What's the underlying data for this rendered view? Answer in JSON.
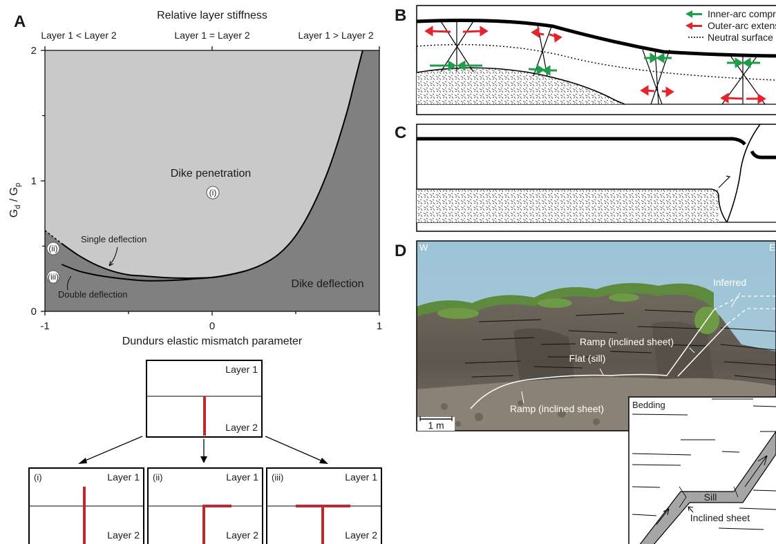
{
  "panels": {
    "a": "A",
    "b": "B",
    "c": "C",
    "d": "D"
  },
  "panel_a": {
    "top_title": "Relative layer stiffness",
    "top_ticks": [
      "Layer 1 < Layer 2",
      "Layer 1 = Layer 2",
      "Layer 1 > Layer 2"
    ],
    "ylabel_main": "G",
    "ylabel_d": "d",
    "ylabel_sep": " / G",
    "ylabel_p": "p",
    "xlabel": "Dundurs elastic mismatch parameter",
    "y_ticks": [
      "0",
      "1",
      "2"
    ],
    "x_ticks": [
      "-1",
      "0",
      "1"
    ],
    "region_penetration": "Dike penetration",
    "region_deflection": "Dike deflection",
    "label_single": "Single deflection",
    "label_double": "Double deflection",
    "markers": [
      "(i)",
      "(ii)",
      "(iii)"
    ],
    "colors": {
      "penetration": "#c9c9c9",
      "deflection": "#808080",
      "dike": "#c0282d"
    }
  },
  "chart_data": {
    "type": "area",
    "xlabel": "Dundurs elastic mismatch parameter",
    "ylabel": "Gd / Gp",
    "top_axis_label": "Relative layer stiffness",
    "top_axis_ticks": [
      "Layer 1 < Layer 2",
      "Layer 1 = Layer 2",
      "Layer 1 > Layer 2"
    ],
    "xlim": [
      -1,
      1
    ],
    "ylim": [
      0,
      2
    ],
    "x_ticks": [
      -1,
      0,
      1
    ],
    "y_ticks": [
      0,
      1,
      2
    ],
    "regions": [
      "Dike penetration",
      "Dike deflection"
    ],
    "series": [
      {
        "name": "Single deflection",
        "x": [
          -1.0,
          -0.9,
          -0.8,
          -0.7,
          -0.6,
          -0.5,
          -0.4,
          -0.3,
          -0.2,
          -0.1,
          0.0,
          0.1,
          0.2,
          0.3,
          0.4,
          0.5,
          0.6,
          0.7,
          0.8,
          0.85,
          0.9
        ],
        "y": [
          0.62,
          0.52,
          0.43,
          0.36,
          0.31,
          0.28,
          0.27,
          0.26,
          0.255,
          0.255,
          0.26,
          0.28,
          0.31,
          0.36,
          0.44,
          0.58,
          0.8,
          1.1,
          1.5,
          1.75,
          2.0
        ]
      },
      {
        "name": "Double deflection",
        "x": [
          -0.9,
          -0.8,
          -0.7,
          -0.6,
          -0.5,
          -0.4,
          -0.3,
          -0.2,
          -0.1,
          0.0,
          0.1,
          0.2
        ],
        "y": [
          0.36,
          0.31,
          0.28,
          0.26,
          0.245,
          0.235,
          0.235,
          0.24,
          0.25,
          0.26,
          0.28,
          0.31
        ]
      }
    ]
  },
  "schematics": {
    "layer1": "Layer 1",
    "layer2": "Layer 2",
    "cases": [
      "(i)",
      "(ii)",
      "(iii)"
    ]
  },
  "panel_b": {
    "legend": [
      "Inner-arc compression",
      "Outer-arc extension",
      "Neutral surface"
    ],
    "colors": {
      "compression": "#1f9e4a",
      "extension": "#e3262b"
    }
  },
  "panel_d": {
    "west": "W",
    "east": "E",
    "inferred": "Inferred",
    "ramp_upper": "Ramp (inclined sheet)",
    "flat": "Flat (sill)",
    "ramp_lower": "Ramp (inclined sheet)",
    "scale": "1 m",
    "inset_bedding": "Bedding",
    "inset_sill": "Sill",
    "inset_inclined": "Inclined sheet"
  }
}
